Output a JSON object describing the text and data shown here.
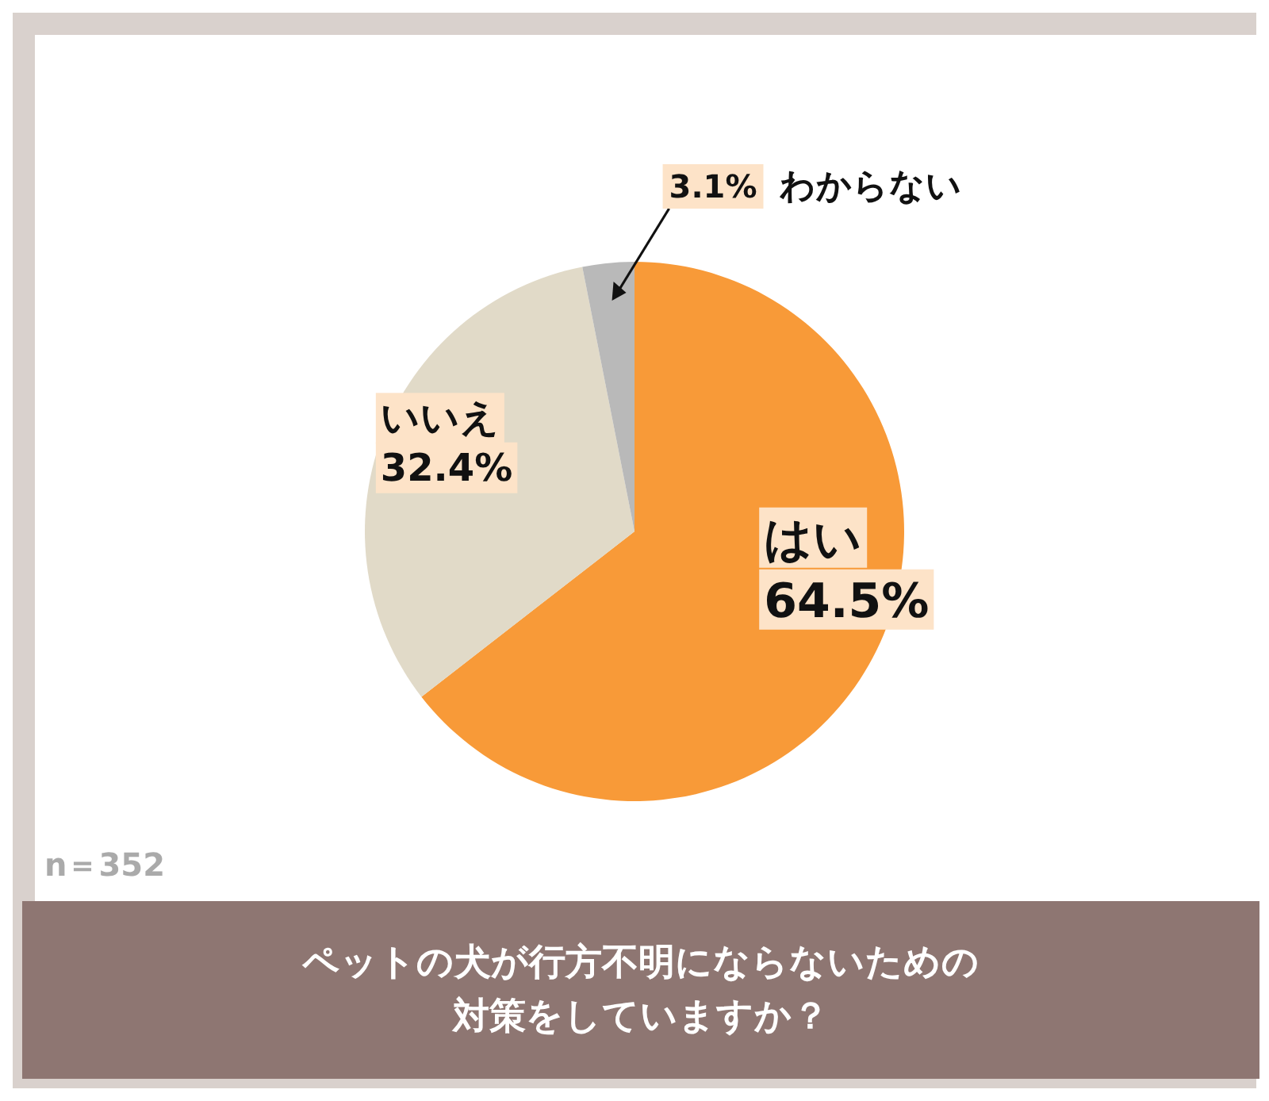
{
  "chart_data": {
    "type": "pie",
    "title": "ペットの犬が行方不明にならないための対策をしていますか？",
    "categories": [
      "はい",
      "いいえ",
      "わからない"
    ],
    "values": [
      64.5,
      32.4,
      3.1
    ],
    "colors": [
      "#f89a38",
      "#e1dac8",
      "#b9b9b9"
    ],
    "value_labels": [
      "64.5%",
      "32.4%",
      "3.1%"
    ],
    "annotations": [
      "n＝352"
    ]
  }
}
